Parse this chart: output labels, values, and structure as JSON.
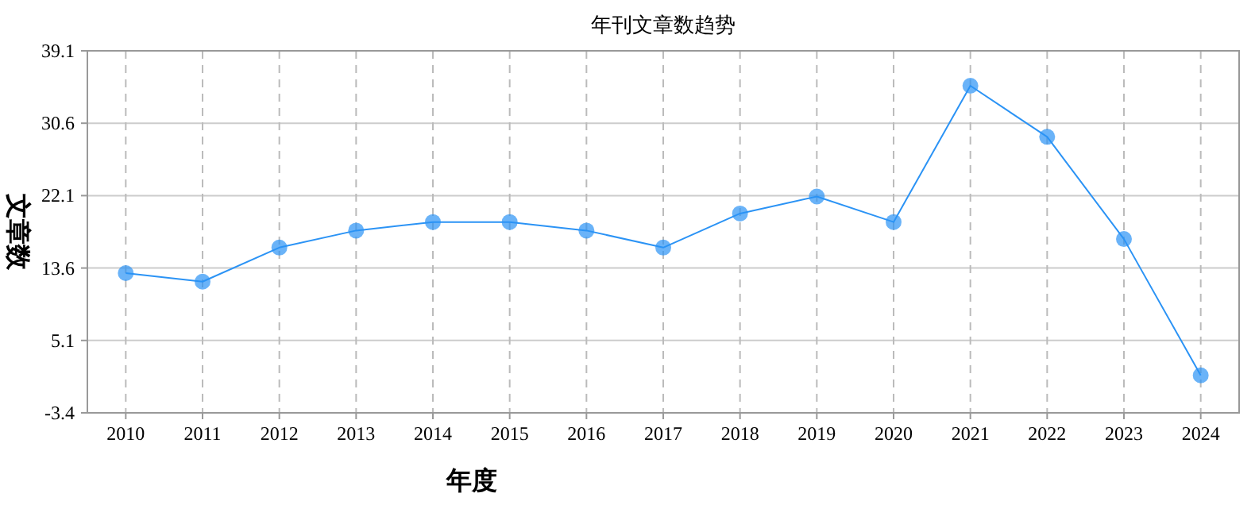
{
  "chart_data": {
    "type": "line",
    "title": "年刊文章数趋势",
    "xlabel": "年度",
    "ylabel": "文章数",
    "categories": [
      "2010",
      "2011",
      "2012",
      "2013",
      "2014",
      "2015",
      "2016",
      "2017",
      "2018",
      "2019",
      "2020",
      "2021",
      "2022",
      "2023",
      "2024"
    ],
    "series": [
      {
        "color": "#2b93f5",
        "values": [
          13,
          12,
          16,
          18,
          19,
          19,
          18,
          16,
          20,
          22,
          19,
          35,
          29,
          17,
          1
        ]
      }
    ],
    "ylim": [
      -3.4,
      39.1
    ],
    "yticks": [
      -3.4,
      5.1,
      13.6,
      22.1,
      30.6,
      39.1
    ],
    "grid": true,
    "marker": "circle"
  }
}
